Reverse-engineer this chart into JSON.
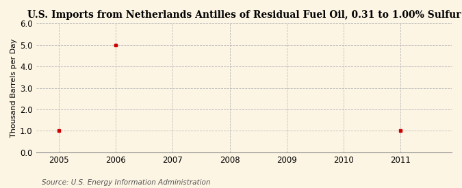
{
  "title": "U.S. Imports from Netherlands Antilles of Residual Fuel Oil, 0.31 to 1.00% Sulfur",
  "ylabel": "Thousand Barrels per Day",
  "source": "Source: U.S. Energy Information Administration",
  "x_data": [
    2005,
    2006,
    2011
  ],
  "y_data": [
    1.0,
    5.0,
    1.0
  ],
  "marker_color": "#cc0000",
  "marker_size": 3.5,
  "xlim": [
    2004.6,
    2011.9
  ],
  "ylim": [
    0.0,
    6.0
  ],
  "yticks": [
    0.0,
    1.0,
    2.0,
    3.0,
    4.0,
    5.0,
    6.0
  ],
  "xticks": [
    2005,
    2006,
    2007,
    2008,
    2009,
    2010,
    2011
  ],
  "background_color": "#fdf5e4",
  "grid_color": "#bbbbbb",
  "title_fontsize": 10,
  "axis_label_fontsize": 8,
  "tick_fontsize": 8.5,
  "source_fontsize": 7.5
}
